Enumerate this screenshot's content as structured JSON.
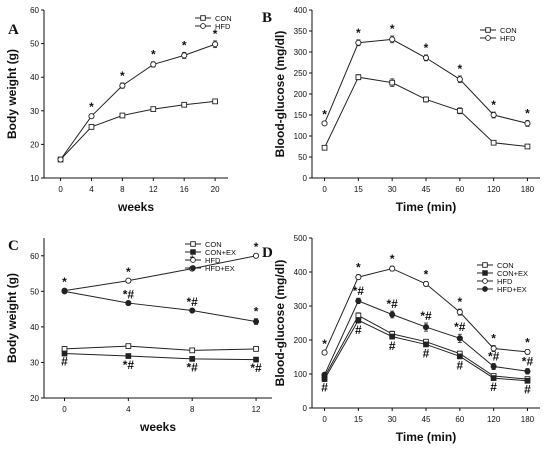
{
  "chart_data": [
    {
      "panel": "A",
      "type": "line",
      "xlabel": "weeks",
      "ylabel": "Body weight (g)",
      "x_scale": "linear",
      "ylim": [
        10,
        60
      ],
      "xticks": [
        "0",
        "4",
        "8",
        "12",
        "16",
        "20"
      ],
      "yticks": [
        "10",
        "20",
        "30",
        "40",
        "50",
        "60"
      ],
      "legend_position": "top-right",
      "x": [
        0,
        4,
        8,
        12,
        16,
        20
      ],
      "series": [
        {
          "name": "CON",
          "marker": "open-square",
          "values": [
            15.5,
            25.2,
            28.6,
            30.5,
            31.8,
            32.8
          ],
          "err": [
            0.3,
            0.4,
            0.4,
            0.4,
            0.4,
            0.4
          ],
          "marks": [
            "",
            "",
            "",
            "",
            "",
            ""
          ]
        },
        {
          "name": "HFD",
          "marker": "open-circle",
          "values": [
            15.5,
            28.4,
            37.5,
            43.8,
            46.5,
            49.8
          ],
          "err": [
            0.3,
            0.6,
            0.8,
            0.8,
            0.9,
            1.0
          ],
          "marks": [
            "",
            "*",
            "*",
            "*",
            "*",
            "*"
          ]
        }
      ]
    },
    {
      "panel": "B",
      "type": "line",
      "xlabel": "Time (min)",
      "ylabel": "Blood-glucose (mg/dl)",
      "x_scale": "categorical",
      "ylim": [
        0,
        400
      ],
      "xticks": [
        "0",
        "15",
        "30",
        "45",
        "60",
        "120",
        "180"
      ],
      "yticks": [
        "0",
        "50",
        "100",
        "150",
        "200",
        "250",
        "300",
        "350",
        "400"
      ],
      "legend_position": "top-right",
      "x": [
        0,
        15,
        30,
        45,
        60,
        120,
        180
      ],
      "series": [
        {
          "name": "CON",
          "marker": "open-square",
          "values": [
            72,
            240,
            227,
            187,
            160,
            84,
            75
          ],
          "err": [
            3,
            6,
            9,
            6,
            7,
            5,
            5
          ],
          "marks": [
            "",
            "",
            "",
            "",
            "",
            "",
            ""
          ]
        },
        {
          "name": "HFD",
          "marker": "open-circle",
          "values": [
            130,
            322,
            330,
            286,
            235,
            150,
            130
          ],
          "err": [
            4,
            7,
            8,
            7,
            8,
            7,
            7
          ],
          "marks": [
            "*",
            "*",
            "*",
            "*",
            "*",
            "*",
            "*"
          ]
        }
      ]
    },
    {
      "panel": "C",
      "type": "line",
      "xlabel": "weeks",
      "ylabel": "Body weight (g)",
      "x_scale": "linear",
      "ylim": [
        20,
        65
      ],
      "xticks": [
        "0",
        "4",
        "8",
        "12"
      ],
      "yticks": [
        "20",
        "30",
        "40",
        "50",
        "60"
      ],
      "legend_position": "top-right",
      "x": [
        0,
        4,
        8,
        12
      ],
      "series": [
        {
          "name": "CON",
          "marker": "open-square",
          "values": [
            33.8,
            34.6,
            33.4,
            33.8
          ],
          "err": [
            0.4,
            0.6,
            0.6,
            0.5
          ],
          "marks": [
            "",
            "",
            "",
            ""
          ]
        },
        {
          "name": "CON+EX",
          "marker": "filled-square",
          "values": [
            32.5,
            31.8,
            31.0,
            30.8
          ],
          "err": [
            0.3,
            0.5,
            0.5,
            0.4
          ],
          "marks": [
            "#",
            "*#",
            "*#",
            "*#"
          ]
        },
        {
          "name": "HFD",
          "marker": "open-circle",
          "values": [
            50.2,
            53.0,
            56.4,
            60.0
          ],
          "err": [
            0.4,
            0.5,
            0.4,
            0.5
          ],
          "marks": [
            "*",
            "*",
            "*",
            "*"
          ]
        },
        {
          "name": "HFD+EX",
          "marker": "filled-circle",
          "values": [
            50.0,
            46.7,
            44.6,
            41.5
          ],
          "err": [
            0.4,
            0.4,
            0.4,
            0.8
          ],
          "marks": [
            "",
            "*#",
            "*#",
            "*"
          ]
        }
      ]
    },
    {
      "panel": "D",
      "type": "line",
      "xlabel": "Time (min)",
      "ylabel": "Blood-glucose (mg/dl)",
      "x_scale": "categorical",
      "ylim": [
        0,
        500
      ],
      "xticks": [
        "0",
        "15",
        "30",
        "45",
        "60",
        "120",
        "180"
      ],
      "yticks": [
        "0",
        "100",
        "200",
        "300",
        "400",
        "500"
      ],
      "legend_position": "top-right",
      "x": [
        0,
        15,
        30,
        45,
        60,
        120,
        180
      ],
      "series": [
        {
          "name": "CON",
          "marker": "open-square",
          "values": [
            92,
            272,
            218,
            195,
            160,
            94,
            85
          ],
          "err": [
            4,
            8,
            8,
            6,
            7,
            5,
            5
          ],
          "marks": [
            "",
            "",
            "",
            "",
            "",
            "",
            ""
          ]
        },
        {
          "name": "CON+EX",
          "marker": "filled-square",
          "values": [
            85,
            258,
            210,
            187,
            152,
            88,
            80
          ],
          "err": [
            4,
            8,
            7,
            6,
            7,
            5,
            5
          ],
          "marks": [
            "#",
            "#",
            "#",
            "#",
            "#",
            "#",
            "#"
          ]
        },
        {
          "name": "HFD",
          "marker": "open-circle",
          "values": [
            163,
            385,
            410,
            365,
            282,
            175,
            165
          ],
          "err": [
            5,
            7,
            7,
            7,
            9,
            9,
            7
          ],
          "marks": [
            "*",
            "*",
            "*",
            "*",
            "*",
            "*",
            "*"
          ]
        },
        {
          "name": "HFD+EX",
          "marker": "filled-circle",
          "values": [
            98,
            315,
            275,
            238,
            205,
            122,
            108
          ],
          "err": [
            4,
            8,
            10,
            12,
            12,
            9,
            8
          ],
          "marks": [
            "",
            "*#",
            "*#",
            "*#",
            "*#",
            "*#",
            "*#"
          ]
        }
      ]
    }
  ]
}
